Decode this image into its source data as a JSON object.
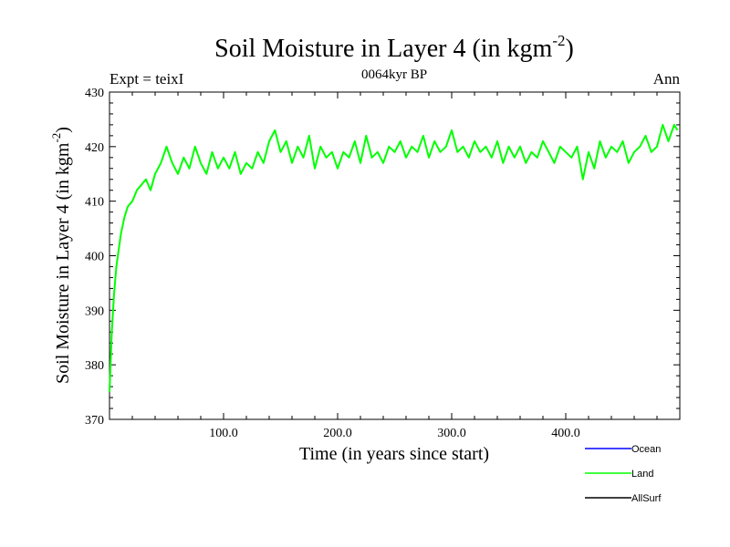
{
  "chart_data": {
    "type": "line",
    "title_main": "Soil Moisture in Layer 4 (in kgm",
    "title_sup": "-2",
    "title_close": ")",
    "left_label": "Expt = teixI",
    "center_label": "0064kyr BP",
    "right_label": "Ann",
    "xlabel": "Time (in years since start)",
    "ylabel_main": "Soil Moisture in Layer 4 (in kgm",
    "ylabel_sup": "-2",
    "ylabel_close": ")",
    "xlim": [
      0,
      500
    ],
    "ylim": [
      370,
      430
    ],
    "xticks": [
      100,
      200,
      300,
      400
    ],
    "xtick_labels": [
      "100.0",
      "200.0",
      "300.0",
      "400.0"
    ],
    "yticks": [
      370,
      380,
      390,
      400,
      410,
      420,
      430
    ],
    "ytick_labels": [
      "370",
      "380",
      "390",
      "400",
      "410",
      "420",
      "430"
    ],
    "legend": [
      {
        "name": "Ocean",
        "color": "#0000ff"
      },
      {
        "name": "Land",
        "color": "#00ff00"
      },
      {
        "name": "AllSurf",
        "color": "#000000"
      }
    ],
    "series": [
      {
        "name": "Land",
        "color": "#00ff00",
        "x": [
          0,
          2,
          4,
          6,
          8,
          10,
          13,
          16,
          20,
          24,
          28,
          32,
          36,
          40,
          45,
          50,
          55,
          60,
          65,
          70,
          75,
          80,
          85,
          90,
          95,
          100,
          105,
          110,
          115,
          120,
          125,
          130,
          135,
          140,
          145,
          150,
          155,
          160,
          165,
          170,
          175,
          180,
          185,
          190,
          195,
          200,
          205,
          210,
          215,
          220,
          225,
          230,
          235,
          240,
          245,
          250,
          255,
          260,
          265,
          270,
          275,
          280,
          285,
          290,
          295,
          300,
          305,
          310,
          315,
          320,
          325,
          330,
          335,
          340,
          345,
          350,
          355,
          360,
          365,
          370,
          375,
          380,
          385,
          390,
          395,
          400,
          405,
          410,
          415,
          420,
          425,
          430,
          435,
          440,
          445,
          450,
          455,
          460,
          465,
          470,
          475,
          480,
          485,
          490,
          495,
          498
        ],
        "y": [
          375,
          386,
          393,
          398,
          401,
          404,
          407,
          409,
          410,
          412,
          413,
          414,
          412,
          415,
          417,
          420,
          417,
          415,
          418,
          416,
          420,
          417,
          415,
          419,
          416,
          418,
          416,
          419,
          415,
          417,
          416,
          419,
          417,
          421,
          423,
          419,
          421,
          417,
          420,
          418,
          422,
          416,
          420,
          418,
          419,
          416,
          419,
          418,
          421,
          417,
          422,
          418,
          419,
          417,
          420,
          419,
          421,
          418,
          420,
          419,
          422,
          418,
          421,
          419,
          420,
          423,
          419,
          420,
          418,
          421,
          419,
          420,
          418,
          421,
          417,
          420,
          418,
          420,
          417,
          419,
          418,
          421,
          419,
          417,
          420,
          419,
          418,
          420,
          414,
          419,
          416,
          421,
          418,
          420,
          419,
          421,
          417,
          419,
          420,
          422,
          419,
          420,
          424,
          421,
          424,
          423
        ]
      }
    ]
  }
}
